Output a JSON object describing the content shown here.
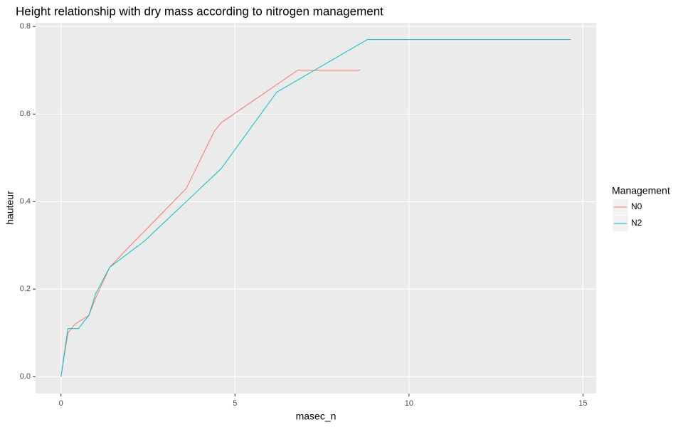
{
  "chart_data": {
    "type": "line",
    "title": "Height relationship with dry mass according to nitrogen management",
    "x_label": "masec_n",
    "y_label": "hauteur",
    "legend_title": "Management",
    "legend_position": "right",
    "series": [
      {
        "name": "N0",
        "color": "#f8766d",
        "x": [
          0,
          0.2,
          0.4,
          0.5,
          0.8,
          1,
          1.4,
          2,
          3.6,
          4.4,
          4.6,
          6.8,
          8.6
        ],
        "values": [
          0,
          0.1,
          0.12,
          0.125,
          0.14,
          0.18,
          0.25,
          0.3,
          0.43,
          0.56,
          0.58,
          0.7,
          0.7
        ]
      },
      {
        "name": "N2",
        "color": "#00bfc4",
        "x": [
          0,
          0.2,
          0.4,
          0.5,
          0.8,
          1,
          1.4,
          2.4,
          4.6,
          6.2,
          8.8,
          14.65
        ],
        "values": [
          0,
          0.11,
          0.11,
          0.11,
          0.14,
          0.19,
          0.25,
          0.31,
          0.475,
          0.65,
          0.77,
          0.77
        ]
      }
    ],
    "xlim": [
      -0.73,
      15.38
    ],
    "xticks": [
      0,
      5,
      10,
      15
    ],
    "ylim": [
      -0.0385,
      0.8085
    ],
    "yticks": [
      {
        "value": 0,
        "label": "0.0"
      },
      0.2,
      0.4,
      0.6,
      0.8
    ],
    "grid": true
  }
}
